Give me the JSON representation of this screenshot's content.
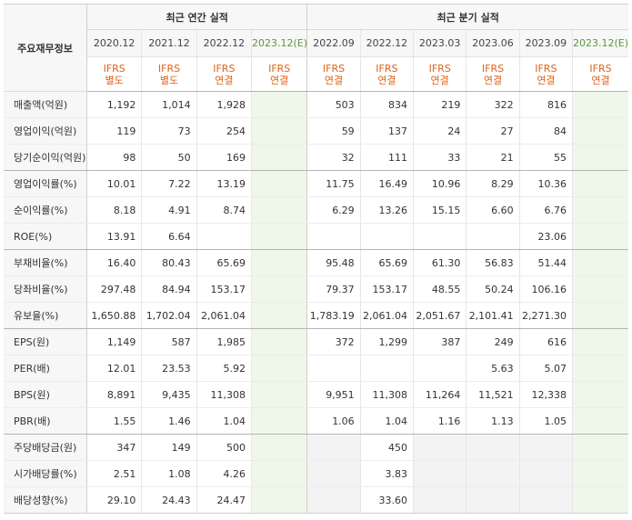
{
  "header": {
    "row_header": "주요재무정보",
    "annual_group": "최근 연간 실적",
    "quarter_group": "최근 분기 실적"
  },
  "periods": {
    "annual": [
      {
        "date": "2020.12",
        "std": "IFRS",
        "type": "별도",
        "est": false
      },
      {
        "date": "2021.12",
        "std": "IFRS",
        "type": "별도",
        "est": false
      },
      {
        "date": "2022.12",
        "std": "IFRS",
        "type": "연결",
        "est": false
      },
      {
        "date": "2023.12(E)",
        "std": "IFRS",
        "type": "연결",
        "est": true
      }
    ],
    "quarter": [
      {
        "date": "2022.09",
        "std": "IFRS",
        "type": "연결",
        "est": false
      },
      {
        "date": "2022.12",
        "std": "IFRS",
        "type": "연결",
        "est": false
      },
      {
        "date": "2023.03",
        "std": "IFRS",
        "type": "연결",
        "est": false
      },
      {
        "date": "2023.06",
        "std": "IFRS",
        "type": "연결",
        "est": false
      },
      {
        "date": "2023.09",
        "std": "IFRS",
        "type": "연결",
        "est": false
      },
      {
        "date": "2023.12(E)",
        "std": "IFRS",
        "type": "연결",
        "est": true
      }
    ]
  },
  "rows": [
    {
      "label": "매출액(억원)",
      "annual": [
        "1,192",
        "1,014",
        "1,928",
        ""
      ],
      "quarter": [
        "503",
        "834",
        "219",
        "322",
        "816",
        ""
      ],
      "group_end": false
    },
    {
      "label": "영업이익(억원)",
      "annual": [
        "119",
        "73",
        "254",
        ""
      ],
      "quarter": [
        "59",
        "137",
        "24",
        "27",
        "84",
        ""
      ],
      "group_end": false
    },
    {
      "label": "당기순이익(억원)",
      "annual": [
        "98",
        "50",
        "169",
        ""
      ],
      "quarter": [
        "32",
        "111",
        "33",
        "21",
        "55",
        ""
      ],
      "group_end": true
    },
    {
      "label": "영업이익률(%)",
      "annual": [
        "10.01",
        "7.22",
        "13.19",
        ""
      ],
      "quarter": [
        "11.75",
        "16.49",
        "10.96",
        "8.29",
        "10.36",
        ""
      ],
      "group_end": false
    },
    {
      "label": "순이익률(%)",
      "annual": [
        "8.18",
        "4.91",
        "8.74",
        ""
      ],
      "quarter": [
        "6.29",
        "13.26",
        "15.15",
        "6.60",
        "6.76",
        ""
      ],
      "group_end": false
    },
    {
      "label": "ROE(%)",
      "annual": [
        "13.91",
        "6.64",
        "",
        ""
      ],
      "quarter": [
        "",
        "",
        "",
        "",
        "23.06",
        ""
      ],
      "group_end": true
    },
    {
      "label": "부채비율(%)",
      "annual": [
        "16.40",
        "80.43",
        "65.69",
        ""
      ],
      "quarter": [
        "95.48",
        "65.69",
        "61.30",
        "56.83",
        "51.44",
        ""
      ],
      "group_end": false
    },
    {
      "label": "당좌비율(%)",
      "annual": [
        "297.48",
        "84.94",
        "153.17",
        ""
      ],
      "quarter": [
        "79.37",
        "153.17",
        "48.55",
        "50.24",
        "106.16",
        ""
      ],
      "group_end": false
    },
    {
      "label": "유보율(%)",
      "annual": [
        "1,650.88",
        "1,702.04",
        "2,061.04",
        ""
      ],
      "quarter": [
        "1,783.19",
        "2,061.04",
        "2,051.67",
        "2,101.41",
        "2,271.30",
        ""
      ],
      "group_end": true
    },
    {
      "label": "EPS(원)",
      "annual": [
        "1,149",
        "587",
        "1,985",
        ""
      ],
      "quarter": [
        "372",
        "1,299",
        "387",
        "249",
        "616",
        ""
      ],
      "group_end": false
    },
    {
      "label": "PER(배)",
      "annual": [
        "12.01",
        "23.53",
        "5.92",
        ""
      ],
      "quarter": [
        "",
        "",
        "",
        "5.63",
        "5.07",
        ""
      ],
      "group_end": false
    },
    {
      "label": "BPS(원)",
      "annual": [
        "8,891",
        "9,435",
        "11,308",
        ""
      ],
      "quarter": [
        "9,951",
        "11,308",
        "11,264",
        "11,521",
        "12,338",
        ""
      ],
      "group_end": false
    },
    {
      "label": "PBR(배)",
      "annual": [
        "1.55",
        "1.46",
        "1.04",
        ""
      ],
      "quarter": [
        "1.06",
        "1.04",
        "1.16",
        "1.13",
        "1.05",
        ""
      ],
      "group_end": true
    },
    {
      "label": "주당배당금(원)",
      "annual": [
        "347",
        "149",
        "500",
        ""
      ],
      "quarter": [
        "",
        "450",
        "",
        "",
        "",
        ""
      ],
      "group_end": false
    },
    {
      "label": "시가배당률(%)",
      "annual": [
        "2.51",
        "1.08",
        "4.26",
        ""
      ],
      "quarter": [
        "",
        "3.83",
        "",
        "",
        "",
        ""
      ],
      "group_end": false
    },
    {
      "label": "배당성향(%)",
      "annual": [
        "29.10",
        "24.43",
        "24.47",
        ""
      ],
      "quarter": [
        "",
        "33.60",
        "",
        "",
        "",
        ""
      ],
      "group_end": false
    }
  ],
  "colors": {
    "accent_orange": "#e0621a",
    "estimate_bg": "#eef7ea",
    "estimate_text": "#5a9a3a",
    "header_bg": "#f7f7f7"
  }
}
